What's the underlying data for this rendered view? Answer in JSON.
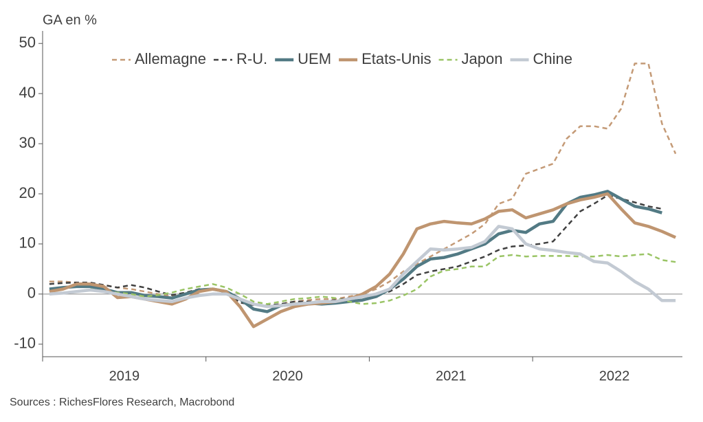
{
  "chart_data": {
    "type": "line",
    "y_axis_label": "GA en %",
    "source": "Sources : RichesFlores Research, Macrobond",
    "year_labels": [
      "2019",
      "2020",
      "2021",
      "2022"
    ],
    "ylim": [
      -12.5,
      52.5
    ],
    "yticks": [
      -10,
      0,
      10,
      20,
      30,
      40,
      50
    ],
    "zero_line": true,
    "legend": "top",
    "series": [
      {
        "name": "Allemagne",
        "color": "#c49a76",
        "style": "dashed",
        "values": [
          2.5,
          2.5,
          2.3,
          2.2,
          1.8,
          1.3,
          1,
          0.5,
          0,
          -0.5,
          0.3,
          1,
          1,
          0.5,
          -1,
          -2,
          -2.5,
          -2,
          -1.5,
          -1.2,
          -1,
          -1,
          -0.5,
          0,
          1,
          2.5,
          4.5,
          6,
          7.5,
          9,
          10.5,
          12,
          14,
          18,
          19,
          24,
          25,
          26,
          31,
          33.5,
          33.5,
          33,
          37,
          46,
          46,
          34,
          28
        ]
      },
      {
        "name": "R-U.",
        "color": "#404040",
        "style": "dashed",
        "values": [
          2,
          2.2,
          2.3,
          2.3,
          1.8,
          1.3,
          1.8,
          1.3,
          0.5,
          -0.2,
          0.3,
          1,
          1,
          0.3,
          -1.7,
          -2.2,
          -2.3,
          -2,
          -1.5,
          -1.5,
          -1.5,
          -1.2,
          -0.8,
          -0.5,
          0,
          0.5,
          2,
          3.8,
          4.5,
          5,
          5.5,
          6.5,
          7.5,
          8.8,
          9.5,
          9.7,
          10,
          10.5,
          13.5,
          16.5,
          18,
          19.7,
          19,
          18.3,
          17.5,
          17,
          null
        ]
      },
      {
        "name": "UEM",
        "color": "#527a84",
        "style": "solid",
        "values": [
          1,
          1.3,
          1.5,
          1.5,
          1,
          0.3,
          0.3,
          -0.3,
          -0.5,
          -0.8,
          0,
          0.8,
          1,
          0.5,
          -1,
          -3,
          -3.5,
          -2.3,
          -2,
          -1.8,
          -2,
          -1.8,
          -1.5,
          -1.2,
          -0.5,
          1,
          3,
          5.5,
          7,
          7.3,
          8,
          9,
          10,
          12,
          12.7,
          12.3,
          14,
          14.5,
          18,
          19.3,
          19.8,
          20.5,
          19,
          17.5,
          17,
          16.2,
          null
        ]
      },
      {
        "name": "Etats-Unis",
        "color": "#bf9570",
        "style": "solid",
        "values": [
          0.5,
          1,
          2,
          2,
          1.5,
          -0.7,
          -0.5,
          -1,
          -1.5,
          -2,
          -1,
          0.5,
          1,
          0.5,
          -2.5,
          -6.5,
          -5,
          -3.5,
          -2.5,
          -2,
          -1.8,
          -1.5,
          -1,
          0,
          1.5,
          4,
          8,
          13,
          14,
          14.5,
          14.2,
          14,
          15,
          16.5,
          16.8,
          15.2,
          16,
          16.8,
          18,
          18.8,
          19.3,
          20,
          17,
          14.2,
          13.5,
          12.5,
          11.3
        ]
      },
      {
        "name": "Japon",
        "color": "#9ac465",
        "style": "dashed",
        "values": [
          0,
          0.2,
          0.5,
          1,
          0.5,
          0.3,
          0,
          -0.5,
          -0.2,
          0.3,
          1,
          1.5,
          2,
          1.3,
          0,
          -1.5,
          -2,
          -1.5,
          -1,
          -0.8,
          -0.5,
          -0.8,
          -1.5,
          -2,
          -1.8,
          -1.3,
          -0.3,
          1,
          3.5,
          4.7,
          5,
          5.5,
          5.5,
          7.5,
          7.8,
          7.5,
          7.6,
          7.6,
          7.6,
          7.5,
          7.5,
          7.8,
          7.5,
          7.8,
          8,
          6.8,
          6.4
        ]
      },
      {
        "name": "Chine",
        "color": "#c3cad3",
        "style": "solid",
        "values": [
          0,
          0.2,
          0.5,
          0.8,
          0.5,
          0,
          -0.5,
          -1,
          -1.3,
          -1.5,
          -0.8,
          -0.3,
          0,
          0,
          -1,
          -2,
          -2.5,
          -2.3,
          -2,
          -1.8,
          -1.5,
          -1.5,
          -1,
          -0.5,
          0,
          1,
          4,
          6.5,
          9,
          8.8,
          9,
          9.3,
          10.5,
          13.5,
          13,
          10,
          9,
          8.7,
          8.3,
          8,
          6.5,
          6.2,
          4.5,
          2.5,
          1,
          -1.3,
          -1.3
        ]
      }
    ]
  }
}
